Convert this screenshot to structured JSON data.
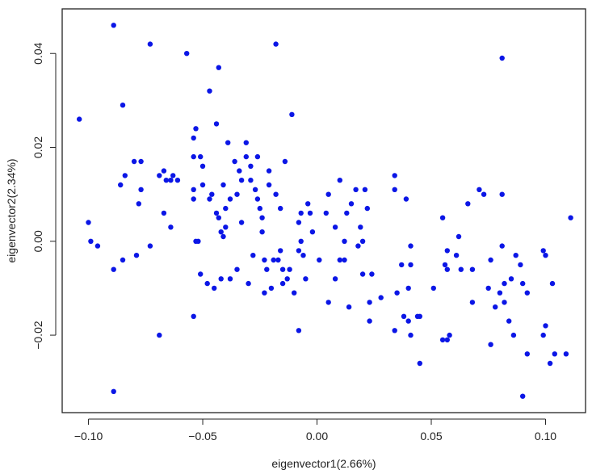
{
  "chart_data": {
    "type": "scatter",
    "title": "",
    "xlabel": "eigenvector1(2.66%)",
    "ylabel": "eigenvector2(2.34%)",
    "xlim": [
      -0.1115,
      0.1175
    ],
    "ylim": [
      -0.0365,
      0.0495
    ],
    "xticks": [
      -0.1,
      -0.05,
      0.0,
      0.05,
      0.1
    ],
    "xtick_labels": [
      "−0.10",
      "−0.05",
      "0.00",
      "0.05",
      "0.10"
    ],
    "yticks": [
      -0.02,
      0.0,
      0.02,
      0.04
    ],
    "ytick_labels": [
      "−0.02",
      "0.00",
      "0.02",
      "0.04"
    ],
    "grid": false,
    "legend": "none",
    "point_color": "#0b16e6",
    "series": [
      {
        "points": [
          [
            -0.104,
            0.026
          ],
          [
            -0.1,
            0.004
          ],
          [
            -0.099,
            0.0
          ],
          [
            -0.096,
            -0.001
          ],
          [
            -0.089,
            0.046
          ],
          [
            -0.089,
            -0.006
          ],
          [
            -0.089,
            -0.032
          ],
          [
            -0.086,
            0.012
          ],
          [
            -0.085,
            0.029
          ],
          [
            -0.085,
            -0.004
          ],
          [
            -0.084,
            0.014
          ],
          [
            -0.08,
            0.017
          ],
          [
            -0.079,
            -0.003
          ],
          [
            -0.078,
            0.008
          ],
          [
            -0.077,
            0.011
          ],
          [
            -0.077,
            0.017
          ],
          [
            -0.073,
            0.042
          ],
          [
            -0.073,
            -0.001
          ],
          [
            -0.069,
            0.014
          ],
          [
            -0.069,
            -0.02
          ],
          [
            -0.067,
            0.006
          ],
          [
            -0.067,
            0.015
          ],
          [
            -0.066,
            0.013
          ],
          [
            -0.064,
            0.003
          ],
          [
            -0.064,
            0.013
          ],
          [
            -0.063,
            0.014
          ],
          [
            -0.061,
            0.013
          ],
          [
            -0.057,
            0.04
          ],
          [
            -0.054,
            0.022
          ],
          [
            -0.054,
            0.018
          ],
          [
            -0.053,
            0.024
          ],
          [
            -0.054,
            0.011
          ],
          [
            -0.054,
            0.009
          ],
          [
            -0.053,
            0.0
          ],
          [
            -0.052,
            0.0
          ],
          [
            -0.054,
            -0.016
          ],
          [
            -0.051,
            0.018
          ],
          [
            -0.051,
            -0.007
          ],
          [
            -0.05,
            0.016
          ],
          [
            -0.05,
            0.012
          ],
          [
            -0.048,
            -0.009
          ],
          [
            -0.047,
            0.032
          ],
          [
            -0.047,
            0.009
          ],
          [
            -0.046,
            0.01
          ],
          [
            -0.045,
            -0.01
          ],
          [
            -0.044,
            0.025
          ],
          [
            -0.044,
            0.006
          ],
          [
            -0.043,
            0.037
          ],
          [
            -0.043,
            0.005
          ],
          [
            -0.042,
            0.002
          ],
          [
            -0.042,
            -0.008
          ],
          [
            -0.041,
            0.001
          ],
          [
            -0.041,
            0.012
          ],
          [
            -0.04,
            0.003
          ],
          [
            -0.04,
            0.007
          ],
          [
            -0.039,
            0.021
          ],
          [
            -0.038,
            0.009
          ],
          [
            -0.038,
            -0.008
          ],
          [
            -0.036,
            0.017
          ],
          [
            -0.035,
            -0.006
          ],
          [
            -0.035,
            0.01
          ],
          [
            -0.034,
            0.015
          ],
          [
            -0.033,
            0.013
          ],
          [
            -0.033,
            0.004
          ],
          [
            -0.031,
            0.021
          ],
          [
            -0.031,
            0.018
          ],
          [
            -0.03,
            -0.009
          ],
          [
            -0.029,
            0.016
          ],
          [
            -0.029,
            0.013
          ],
          [
            -0.028,
            -0.003
          ],
          [
            -0.027,
            0.011
          ],
          [
            -0.026,
            0.018
          ],
          [
            -0.026,
            0.009
          ],
          [
            -0.025,
            0.007
          ],
          [
            -0.024,
            0.005
          ],
          [
            -0.024,
            0.002
          ],
          [
            -0.023,
            -0.004
          ],
          [
            -0.023,
            -0.011
          ],
          [
            -0.022,
            -0.006
          ],
          [
            -0.021,
            0.012
          ],
          [
            -0.021,
            0.015
          ],
          [
            -0.02,
            -0.01
          ],
          [
            -0.019,
            -0.004
          ],
          [
            -0.018,
            0.042
          ],
          [
            -0.018,
            0.01
          ],
          [
            -0.017,
            -0.004
          ],
          [
            -0.016,
            -0.002
          ],
          [
            -0.016,
            0.007
          ],
          [
            -0.015,
            -0.006
          ],
          [
            -0.015,
            -0.009
          ],
          [
            -0.014,
            0.017
          ],
          [
            -0.013,
            -0.008
          ],
          [
            -0.012,
            -0.006
          ],
          [
            -0.011,
            0.027
          ],
          [
            -0.01,
            -0.011
          ],
          [
            -0.008,
            0.004
          ],
          [
            -0.008,
            -0.002
          ],
          [
            -0.008,
            -0.019
          ],
          [
            -0.007,
            0.006
          ],
          [
            -0.007,
            0.0
          ],
          [
            -0.006,
            -0.003
          ],
          [
            -0.005,
            -0.008
          ],
          [
            -0.004,
            0.008
          ],
          [
            -0.003,
            0.006
          ],
          [
            -0.002,
            0.002
          ],
          [
            0.001,
            -0.004
          ],
          [
            0.004,
            0.006
          ],
          [
            0.005,
            0.01
          ],
          [
            0.005,
            -0.013
          ],
          [
            0.008,
            0.003
          ],
          [
            0.008,
            -0.008
          ],
          [
            0.01,
            0.013
          ],
          [
            0.01,
            -0.004
          ],
          [
            0.012,
            0.0
          ],
          [
            0.012,
            -0.004
          ],
          [
            0.013,
            0.006
          ],
          [
            0.014,
            -0.014
          ],
          [
            0.015,
            0.008
          ],
          [
            0.017,
            0.011
          ],
          [
            0.018,
            -0.001
          ],
          [
            0.019,
            0.003
          ],
          [
            0.02,
            0.0
          ],
          [
            0.02,
            -0.007
          ],
          [
            0.021,
            0.011
          ],
          [
            0.022,
            0.007
          ],
          [
            0.023,
            -0.013
          ],
          [
            0.023,
            -0.017
          ],
          [
            0.024,
            -0.007
          ],
          [
            0.028,
            -0.012
          ],
          [
            0.034,
            0.014
          ],
          [
            0.034,
            0.011
          ],
          [
            0.034,
            -0.019
          ],
          [
            0.035,
            -0.011
          ],
          [
            0.037,
            -0.005
          ],
          [
            0.038,
            -0.016
          ],
          [
            0.039,
            0.009
          ],
          [
            0.04,
            -0.017
          ],
          [
            0.04,
            -0.01
          ],
          [
            0.041,
            -0.02
          ],
          [
            0.041,
            -0.001
          ],
          [
            0.041,
            -0.005
          ],
          [
            0.044,
            -0.016
          ],
          [
            0.045,
            -0.016
          ],
          [
            0.045,
            -0.026
          ],
          [
            0.051,
            -0.01
          ],
          [
            0.055,
            0.005
          ],
          [
            0.055,
            -0.021
          ],
          [
            0.056,
            -0.005
          ],
          [
            0.057,
            -0.006
          ],
          [
            0.057,
            -0.002
          ],
          [
            0.057,
            -0.021
          ],
          [
            0.058,
            -0.02
          ],
          [
            0.061,
            -0.003
          ],
          [
            0.062,
            0.001
          ],
          [
            0.063,
            -0.006
          ],
          [
            0.066,
            0.008
          ],
          [
            0.068,
            -0.006
          ],
          [
            0.068,
            -0.013
          ],
          [
            0.071,
            0.011
          ],
          [
            0.073,
            0.01
          ],
          [
            0.075,
            -0.01
          ],
          [
            0.076,
            -0.004
          ],
          [
            0.076,
            -0.022
          ],
          [
            0.078,
            -0.014
          ],
          [
            0.08,
            -0.011
          ],
          [
            0.081,
            0.039
          ],
          [
            0.081,
            0.01
          ],
          [
            0.081,
            -0.001
          ],
          [
            0.082,
            -0.009
          ],
          [
            0.082,
            -0.013
          ],
          [
            0.084,
            -0.017
          ],
          [
            0.085,
            -0.008
          ],
          [
            0.086,
            -0.02
          ],
          [
            0.087,
            -0.003
          ],
          [
            0.089,
            -0.005
          ],
          [
            0.09,
            -0.033
          ],
          [
            0.09,
            -0.009
          ],
          [
            0.092,
            -0.011
          ],
          [
            0.092,
            -0.024
          ],
          [
            0.099,
            -0.002
          ],
          [
            0.099,
            -0.02
          ],
          [
            0.1,
            -0.003
          ],
          [
            0.1,
            -0.018
          ],
          [
            0.102,
            -0.026
          ],
          [
            0.103,
            -0.009
          ],
          [
            0.104,
            -0.024
          ],
          [
            0.109,
            -0.024
          ],
          [
            0.111,
            0.005
          ]
        ]
      }
    ]
  }
}
